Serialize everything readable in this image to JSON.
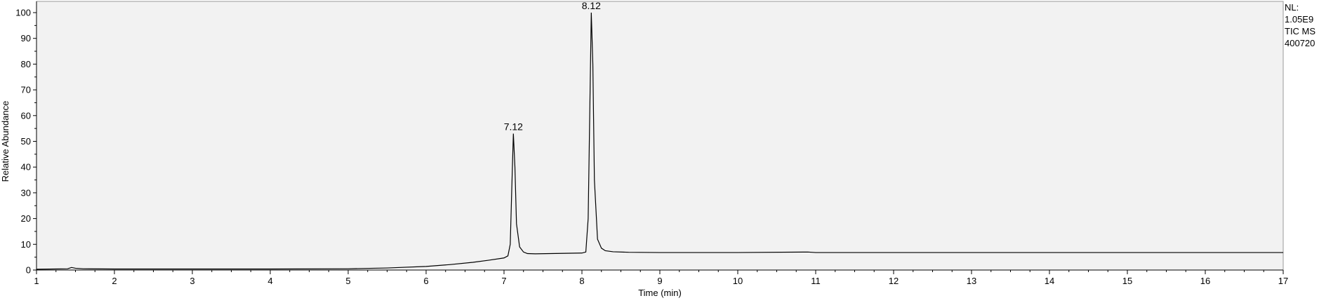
{
  "chart_data": {
    "type": "line",
    "title": "",
    "xlabel": "Time (min)",
    "ylabel": "Relative Abundance",
    "xlim": [
      1,
      17
    ],
    "ylim": [
      0,
      100
    ],
    "xticks": [
      1,
      2,
      3,
      4,
      5,
      6,
      7,
      8,
      9,
      10,
      11,
      12,
      13,
      14,
      15,
      16,
      17
    ],
    "yticks": [
      0,
      10,
      20,
      30,
      40,
      50,
      60,
      70,
      80,
      90,
      100
    ],
    "grid": false,
    "line_color": "#000000",
    "plot_background": "#f2f2f2",
    "series": [
      {
        "x": [
          1.0,
          1.4,
          1.45,
          1.5,
          1.6,
          2.0,
          3.0,
          4.0,
          5.0,
          5.5,
          6.0,
          6.3,
          6.6,
          6.8,
          7.0,
          7.05,
          7.08,
          7.1,
          7.12,
          7.14,
          7.16,
          7.2,
          7.25,
          7.3,
          7.4,
          7.6,
          7.8,
          8.0,
          8.05,
          8.08,
          8.1,
          8.12,
          8.14,
          8.16,
          8.2,
          8.25,
          8.3,
          8.4,
          8.6,
          9.0,
          10.0,
          10.9,
          11.0,
          12.0,
          13.0,
          14.0,
          15.0,
          16.0,
          17.0
        ],
        "y": [
          0.3,
          0.5,
          1.0,
          0.7,
          0.5,
          0.4,
          0.4,
          0.4,
          0.5,
          0.8,
          1.4,
          2.1,
          3.0,
          3.8,
          4.7,
          5.5,
          10.0,
          32.0,
          53.0,
          40.0,
          18.0,
          9.0,
          7.0,
          6.4,
          6.3,
          6.4,
          6.5,
          6.6,
          7.0,
          20.0,
          60.0,
          100.0,
          80.0,
          35.0,
          12.0,
          8.5,
          7.5,
          7.1,
          6.9,
          6.8,
          6.8,
          7.0,
          6.8,
          6.8,
          6.8,
          6.8,
          6.8,
          6.8,
          6.8
        ]
      }
    ],
    "annotations": [
      {
        "x": 7.12,
        "y": 53.0,
        "text": "7.12"
      },
      {
        "x": 8.12,
        "y": 100.0,
        "text": "8.12"
      }
    ]
  },
  "meta": {
    "nl_label": "NL:",
    "nl_value": "1.05E9",
    "trace": "TIC  MS",
    "file": "400720"
  }
}
